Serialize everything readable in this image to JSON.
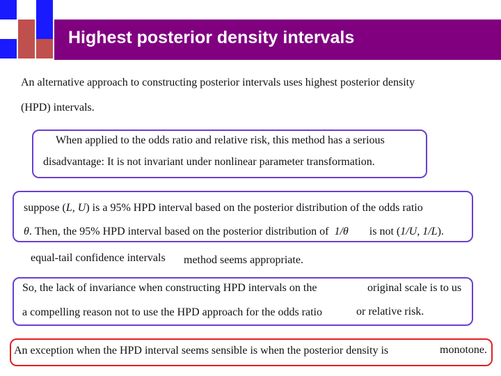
{
  "title": "Highest posterior density intervals",
  "intro": {
    "line1": "An alternative approach to constructing posterior intervals uses highest posterior density",
    "line2": "(HPD) intervals."
  },
  "box1": {
    "line1": "When applied to the odds ratio and relative risk, this method has a serious",
    "line2": "disadvantage: It is not invariant under nonlinear parameter transformation."
  },
  "box2": {
    "line1_a": "suppose (",
    "line1_math": "L, U",
    "line1_b": ") is a 95% HPD interval based on the posterior distribution of the odds ratio",
    "line2_math_a": "θ",
    "line2_a": ". Then, the 95% HPD interval based on the posterior distribution of",
    "line2_math_b": "1/θ",
    "line2_b": "is not (",
    "line2_math_c": "1/U, 1/L",
    "line2_c": ")."
  },
  "equal_tail": {
    "part1": "equal-tail confidence intervals",
    "part2": "method seems appropriate."
  },
  "box3": {
    "line1_a": "So, the lack of invariance when constructing HPD intervals on the",
    "line1_b": "original scale is to us",
    "line2_a": "a compelling reason not to use the HPD approach for the odds ratio",
    "line2_b": "or relative risk."
  },
  "box4": {
    "part1": "An exception when the HPD interval seems sensible is when the posterior density is",
    "part2": "monotone."
  },
  "colors": {
    "title_bar": "#800080",
    "square_blue": "#1a1aff",
    "square_red": "#c0504d",
    "box_purple": "#6a3fd0",
    "box_red": "#e02020"
  }
}
